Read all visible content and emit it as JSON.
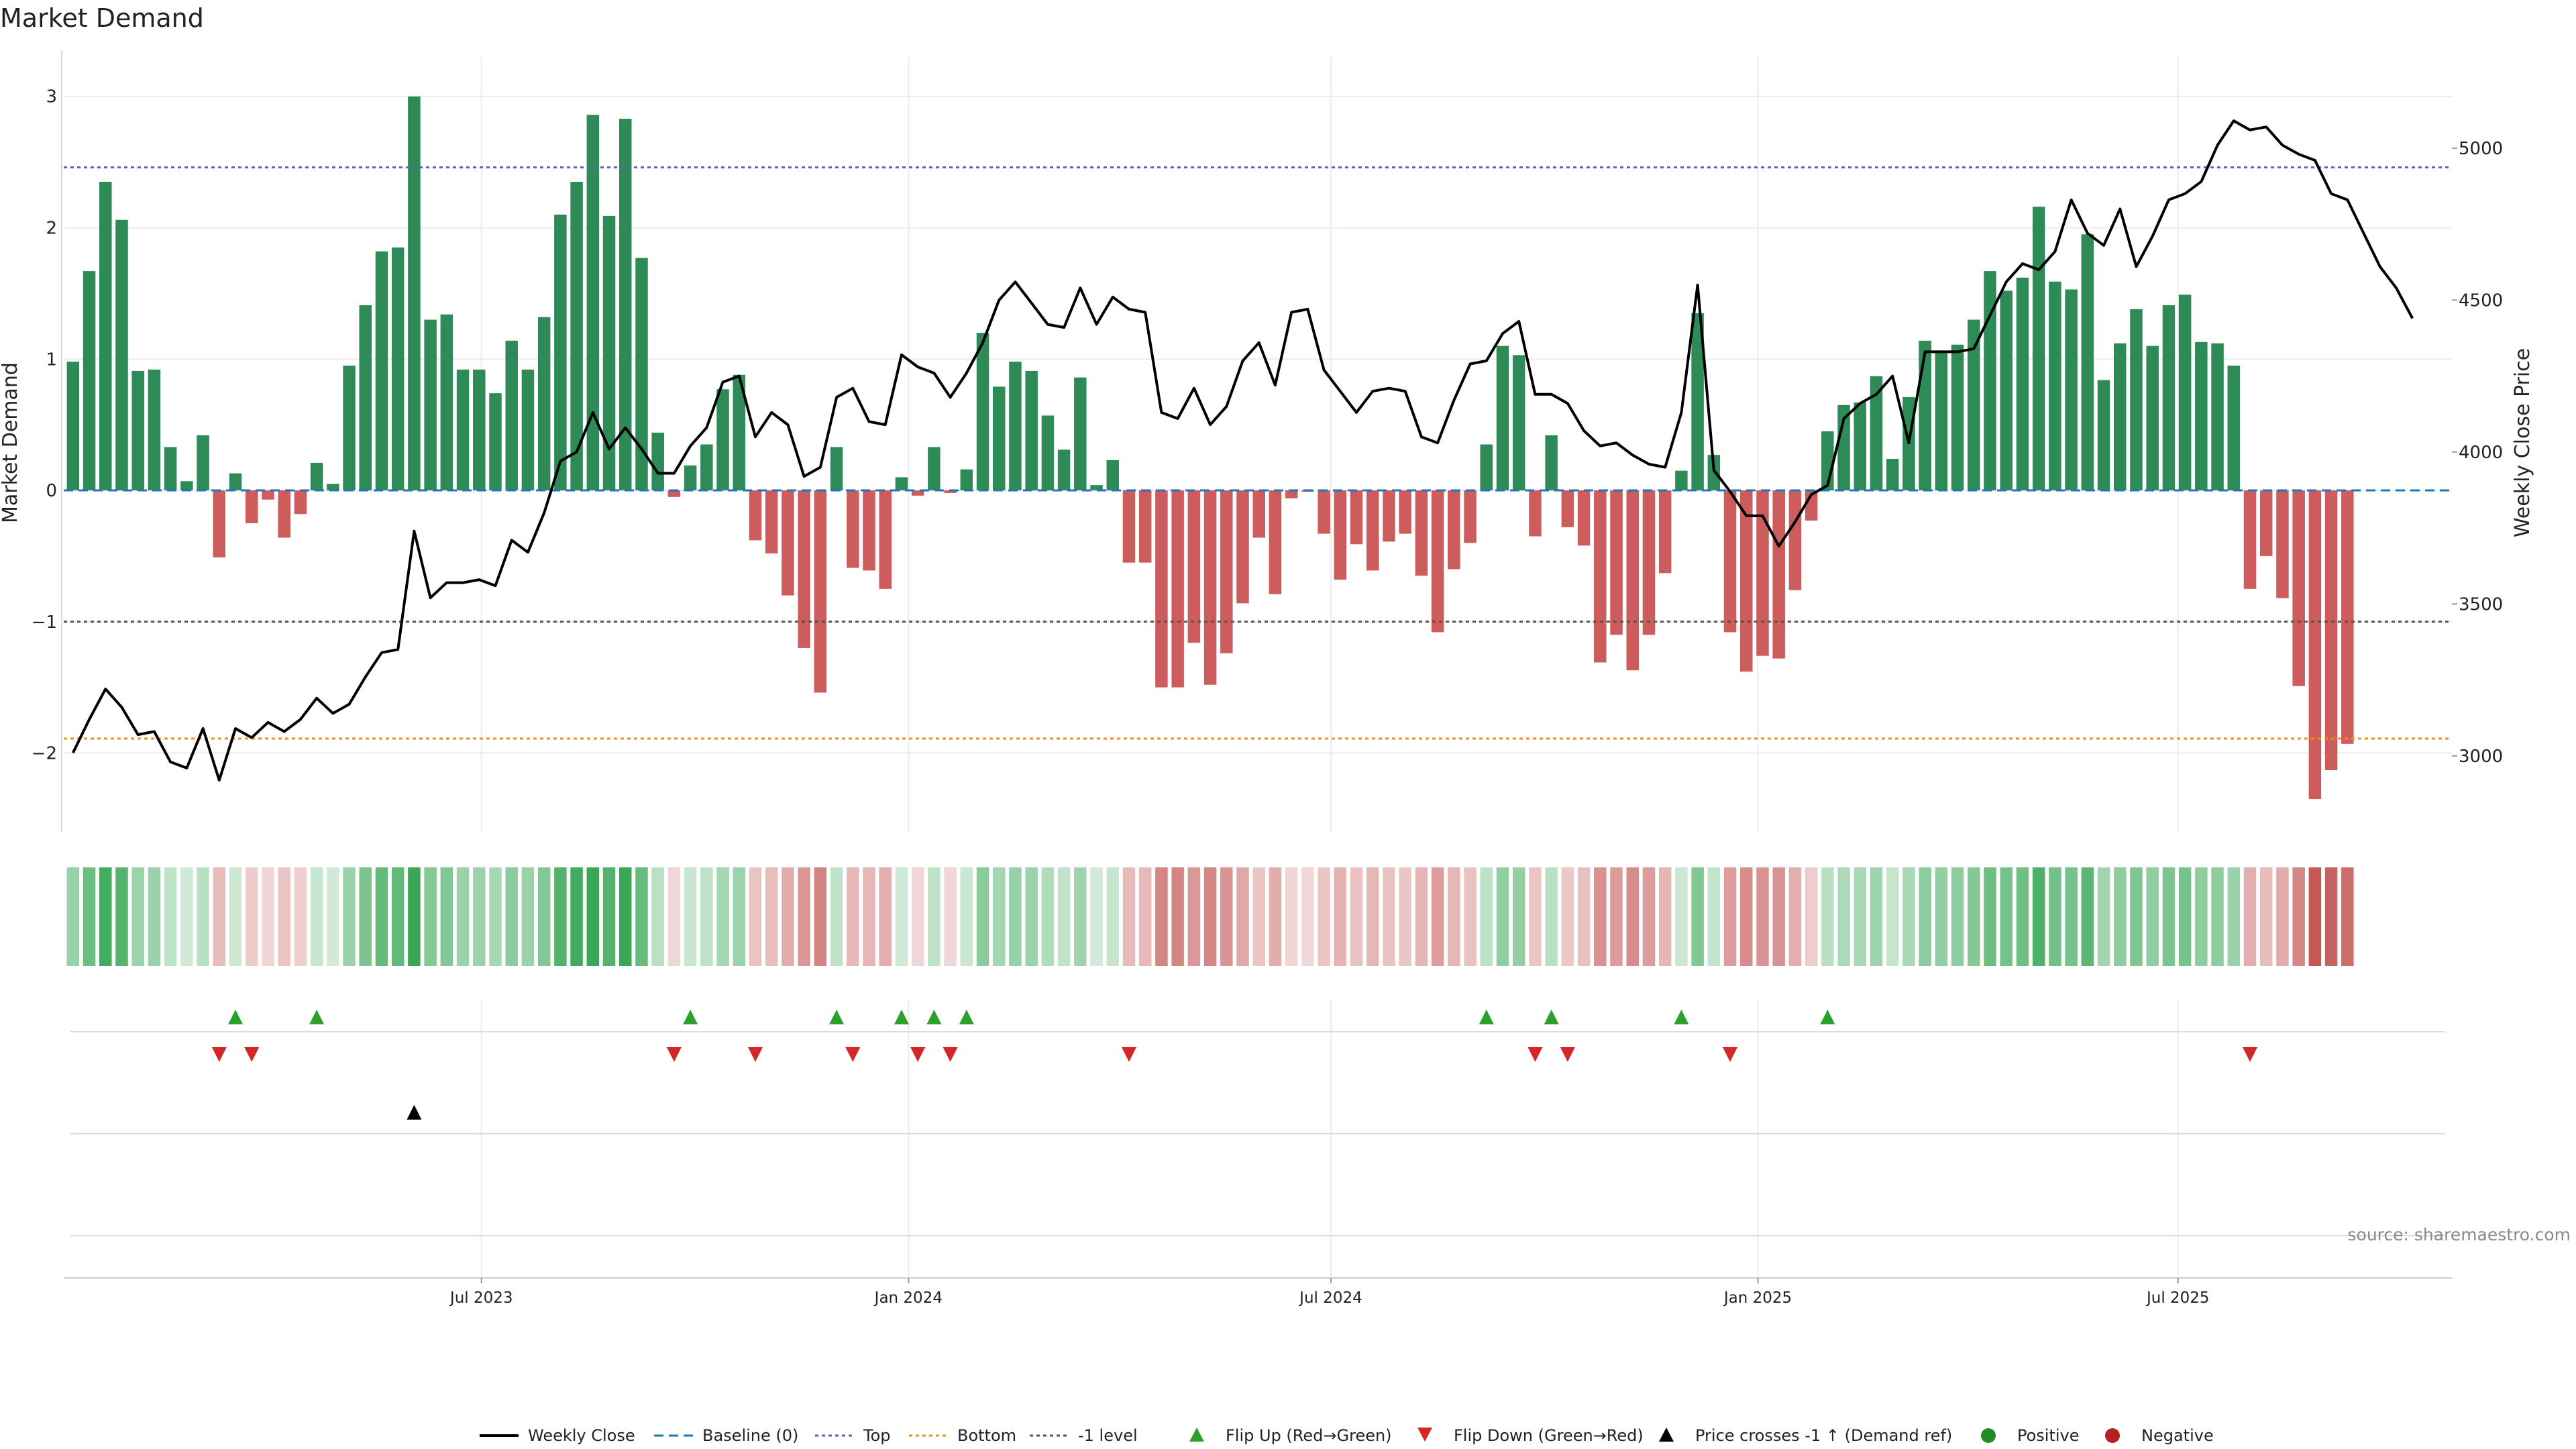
{
  "chart_data": {
    "type": "bar",
    "title": "Market Demand",
    "ylabel_left": "Market Demand",
    "ylabel_right": "Weekly Close Price",
    "yticks_left": [
      "3",
      "2",
      "1",
      "0",
      "−1",
      "−2"
    ],
    "yticks_left_values": [
      3,
      2,
      1,
      0,
      -1,
      -2
    ],
    "ylim_left": [
      -2.6,
      3.3
    ],
    "yticks_right": [
      "5000",
      "4500",
      "4000",
      "3500",
      "3000"
    ],
    "yticks_right_values": [
      5000,
      4500,
      4000,
      3500,
      3000
    ],
    "ylim_right": [
      2750,
      5300
    ],
    "x_start": "2023-01-06",
    "x_step_days": 7,
    "xlim": [
      "2023-01-02",
      "2025-10-27"
    ],
    "xticks": [
      {
        "label": "Jul 2023",
        "date": "2023-07-01"
      },
      {
        "label": "Jan 2024",
        "date": "2024-01-01"
      },
      {
        "label": "Jul 2024",
        "date": "2024-07-01"
      },
      {
        "label": "Jan 2025",
        "date": "2025-01-01"
      },
      {
        "label": "Jul 2025",
        "date": "2025-07-01"
      }
    ],
    "levels": {
      "top": 2.46,
      "bottom": -1.89,
      "minus_one": -1,
      "baseline": 0
    },
    "demand": [
      0.98,
      1.67,
      2.35,
      2.06,
      0.91,
      0.92,
      0.33,
      0.07,
      0.42,
      -0.51,
      0.13,
      -0.25,
      -0.07,
      -0.36,
      -0.18,
      0.21,
      0.05,
      0.95,
      1.41,
      1.82,
      1.85,
      3.0,
      1.3,
      1.34,
      0.92,
      0.92,
      0.74,
      1.14,
      0.92,
      1.32,
      2.1,
      2.35,
      2.86,
      2.09,
      2.83,
      1.77,
      0.44,
      -0.05,
      0.19,
      0.35,
      0.77,
      0.88,
      -0.38,
      -0.48,
      -0.8,
      -1.2,
      -1.54,
      0.33,
      -0.59,
      -0.61,
      -0.75,
      0.1,
      -0.04,
      0.33,
      -0.02,
      0.16,
      1.2,
      0.79,
      0.98,
      0.91,
      0.57,
      0.31,
      0.86,
      0.04,
      0.23,
      -0.55,
      -0.55,
      -1.5,
      -1.5,
      -1.16,
      -1.48,
      -1.24,
      -0.86,
      -0.36,
      -0.79,
      -0.06,
      -0.01,
      -0.33,
      -0.68,
      -0.41,
      -0.61,
      -0.39,
      -0.33,
      -0.65,
      -1.08,
      -0.6,
      -0.4,
      0.35,
      1.1,
      1.03,
      -0.35,
      0.42,
      -0.28,
      -0.42,
      -1.31,
      -1.1,
      -1.37,
      -1.1,
      -0.63,
      0.15,
      1.35,
      0.27,
      -1.08,
      -1.38,
      -1.26,
      -1.28,
      -0.76,
      -0.23,
      0.45,
      0.65,
      0.67,
      0.87,
      0.24,
      0.71,
      1.14,
      1.05,
      1.11,
      1.3,
      1.67,
      1.52,
      1.62,
      2.16,
      1.59,
      1.53,
      1.95,
      0.84,
      1.12,
      1.38,
      1.1,
      1.41,
      1.49,
      1.13,
      1.12,
      0.95,
      -0.75,
      -0.5,
      -0.82,
      -1.49,
      -2.35,
      -2.13,
      -1.93
    ],
    "close": [
      3010,
      3120,
      3220,
      3160,
      3070,
      3080,
      2980,
      2960,
      3090,
      2920,
      3090,
      3060,
      3110,
      3080,
      3120,
      3190,
      3140,
      3170,
      3260,
      3340,
      3350,
      3740,
      3520,
      3570,
      3570,
      3580,
      3560,
      3710,
      3670,
      3800,
      3970,
      4000,
      4130,
      4010,
      4080,
      4010,
      3930,
      3930,
      4020,
      4080,
      4230,
      4250,
      4050,
      4130,
      4090,
      3920,
      3950,
      4180,
      4210,
      4100,
      4090,
      4320,
      4280,
      4260,
      4180,
      4260,
      4360,
      4500,
      4560,
      4490,
      4420,
      4410,
      4540,
      4420,
      4510,
      4470,
      4460,
      4130,
      4110,
      4210,
      4090,
      4150,
      4300,
      4360,
      4220,
      4460,
      4470,
      4270,
      4200,
      4130,
      4200,
      4210,
      4200,
      4050,
      4030,
      4170,
      4290,
      4300,
      4390,
      4430,
      4190,
      4190,
      4160,
      4070,
      4020,
      4030,
      3990,
      3960,
      3950,
      4130,
      4550,
      3940,
      3870,
      3790,
      3790,
      3690,
      3770,
      3860,
      3890,
      4110,
      4160,
      4190,
      4250,
      4030,
      4330,
      4330,
      4330,
      4340,
      4450,
      4560,
      4620,
      4600,
      4660,
      4830,
      4720,
      4680,
      4800,
      4610,
      4710,
      4830,
      4850,
      4890,
      5010,
      5090,
      5060,
      5070,
      5010,
      4980,
      4960,
      4850,
      4830,
      4720,
      4610,
      4540,
      4440
    ]
  },
  "legend": [
    {
      "label": "Weekly Close",
      "icon": "line-solid-icon"
    },
    {
      "label": "Baseline (0)",
      "icon": "line-dashed-icon"
    },
    {
      "label": "Top",
      "icon": "line-dotted-icon"
    },
    {
      "label": "Bottom",
      "icon": "line-dotted-icon"
    },
    {
      "label": "-1 level",
      "icon": "line-dotted-icon"
    },
    {
      "label": "Flip Up (Red→Green)",
      "icon": "triangle-up-icon"
    },
    {
      "label": "Flip Down (Green→Red)",
      "icon": "triangle-down-icon"
    },
    {
      "label": "Price crosses -1 ↑ (Demand ref)",
      "icon": "triangle-up-icon"
    },
    {
      "label": "Positive",
      "icon": "circle-icon"
    },
    {
      "label": "Negative",
      "icon": "circle-icon"
    }
  ],
  "source": "source: sharemaestro.com",
  "colors": {
    "positive": "#2e8b57",
    "negative": "#cd5c5c",
    "close": "#000000",
    "baseline": "#1f77b4",
    "top": "#6a5acd",
    "bottom": "#ff8c00",
    "minus_one": "#555555",
    "flip_up": "#2ca02c",
    "flip_down": "#d62728",
    "cross": "#000000",
    "positive_dot": "#228b22",
    "negative_dot": "#b22222"
  }
}
